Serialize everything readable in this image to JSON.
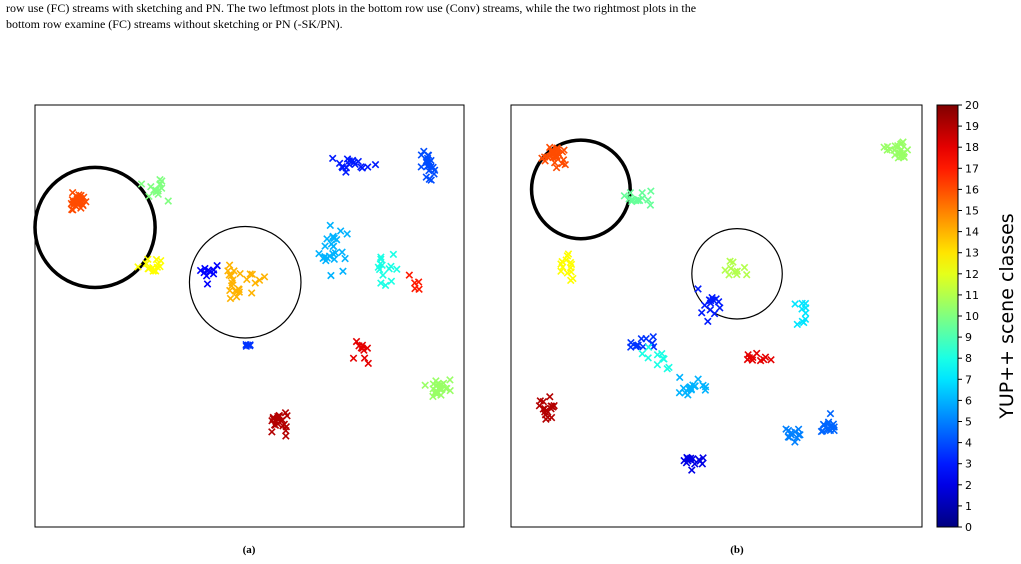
{
  "caption": {
    "line1": "row use (FC) streams with sketching and PN. The two leftmost plots in the bottom row use (Conv) streams, while the two rightmost plots in the",
    "line2": "bottom row examine (FC) streams without sketching or PN (-SK/PN)."
  },
  "panels": [
    {
      "label": "(a)"
    },
    {
      "label": "(b)"
    }
  ],
  "colorbar": {
    "title": "YUP++ scene classes",
    "colormap": "jet",
    "min": 0,
    "max": 20,
    "ticks": [
      "0",
      "1",
      "2",
      "3",
      "4",
      "5",
      "6",
      "7",
      "8",
      "9",
      "10",
      "11",
      "12",
      "13",
      "14",
      "15",
      "16",
      "17",
      "18",
      "19",
      "20"
    ]
  },
  "chart_data": [
    {
      "type": "scatter",
      "panel": "(a)",
      "marker": "x",
      "xlabel": "",
      "ylabel": "",
      "xlim": [
        0,
        100
      ],
      "ylim": [
        0,
        100
      ],
      "grid": false,
      "clusters": [
        {
          "class": 16,
          "center": [
            10,
            77
          ],
          "spread": [
            4,
            3
          ],
          "n": 34
        },
        {
          "class": 10,
          "center": [
            28,
            80
          ],
          "spread": [
            5,
            4
          ],
          "n": 14
        },
        {
          "class": 12.5,
          "center": [
            27,
            62
          ],
          "spread": [
            4,
            2
          ],
          "n": 14
        },
        {
          "class": 3,
          "center": [
            74,
            86
          ],
          "spread": [
            6,
            3
          ],
          "n": 18
        },
        {
          "class": 4,
          "center": [
            92,
            85
          ],
          "spread": [
            3,
            5
          ],
          "n": 20
        },
        {
          "class": 6,
          "center": [
            69,
            66
          ],
          "spread": [
            5,
            8
          ],
          "n": 26
        },
        {
          "class": 8,
          "center": [
            82,
            62
          ],
          "spread": [
            5,
            5
          ],
          "n": 14
        },
        {
          "class": 17,
          "center": [
            88,
            58
          ],
          "spread": [
            2,
            3
          ],
          "n": 5
        },
        {
          "class": 10.5,
          "center": [
            94,
            33
          ],
          "spread": [
            4,
            3
          ],
          "n": 26
        },
        {
          "class": 19,
          "center": [
            57,
            25
          ],
          "spread": [
            3,
            4
          ],
          "n": 22
        },
        {
          "class": 3.5,
          "center": [
            50,
            43
          ],
          "spread": [
            2,
            1
          ],
          "n": 5
        },
        {
          "class": 18,
          "center": [
            76,
            42
          ],
          "spread": [
            5,
            4
          ],
          "n": 10
        },
        {
          "class": 14,
          "center": [
            48,
            58
          ],
          "spread": [
            7,
            7
          ],
          "n": 24
        },
        {
          "class": 2.5,
          "center": [
            40,
            60
          ],
          "spread": [
            3,
            4
          ],
          "n": 10
        }
      ],
      "annotations": [
        {
          "shape": "circle",
          "center": [
            14,
            71
          ],
          "radius": 14,
          "weight": "thick"
        },
        {
          "shape": "circle",
          "center": [
            49,
            58
          ],
          "radius": 13,
          "weight": "thin"
        }
      ]
    },
    {
      "type": "scatter",
      "panel": "(b)",
      "marker": "x",
      "xlabel": "",
      "ylabel": "",
      "xlim": [
        0,
        100
      ],
      "ylim": [
        0,
        100
      ],
      "grid": false,
      "clusters": [
        {
          "class": 16,
          "center": [
            11,
            88
          ],
          "spread": [
            4,
            4
          ],
          "n": 28
        },
        {
          "class": 9.5,
          "center": [
            31,
            78
          ],
          "spread": [
            5,
            4
          ],
          "n": 14
        },
        {
          "class": 12.5,
          "center": [
            14,
            62
          ],
          "spread": [
            3,
            5
          ],
          "n": 14
        },
        {
          "class": 10.5,
          "center": [
            94,
            89
          ],
          "spread": [
            4,
            3
          ],
          "n": 26
        },
        {
          "class": 19,
          "center": [
            9,
            28
          ],
          "spread": [
            3,
            4
          ],
          "n": 18
        },
        {
          "class": 3.5,
          "center": [
            32,
            43
          ],
          "spread": [
            5,
            3
          ],
          "n": 12
        },
        {
          "class": 8,
          "center": [
            36,
            40
          ],
          "spread": [
            5,
            3
          ],
          "n": 10
        },
        {
          "class": 6,
          "center": [
            44,
            33
          ],
          "spread": [
            6,
            4
          ],
          "n": 18
        },
        {
          "class": 5,
          "center": [
            68,
            22
          ],
          "spread": [
            4,
            3
          ],
          "n": 12
        },
        {
          "class": 2,
          "center": [
            44,
            15
          ],
          "spread": [
            4,
            3
          ],
          "n": 16
        },
        {
          "class": 4.5,
          "center": [
            77,
            24
          ],
          "spread": [
            3,
            4
          ],
          "n": 16
        },
        {
          "class": 7,
          "center": [
            71,
            50
          ],
          "spread": [
            4,
            4
          ],
          "n": 10
        },
        {
          "class": 18,
          "center": [
            59,
            40
          ],
          "spread": [
            6,
            3
          ],
          "n": 10
        },
        {
          "class": 11,
          "center": [
            54,
            61
          ],
          "spread": [
            4,
            3
          ],
          "n": 10
        },
        {
          "class": 3,
          "center": [
            48,
            52
          ],
          "spread": [
            6,
            6
          ],
          "n": 14
        }
      ],
      "annotations": [
        {
          "shape": "circle",
          "center": [
            17,
            80
          ],
          "radius": 12,
          "weight": "thick"
        },
        {
          "shape": "circle",
          "center": [
            55,
            60
          ],
          "radius": 11,
          "weight": "thin"
        }
      ]
    }
  ]
}
